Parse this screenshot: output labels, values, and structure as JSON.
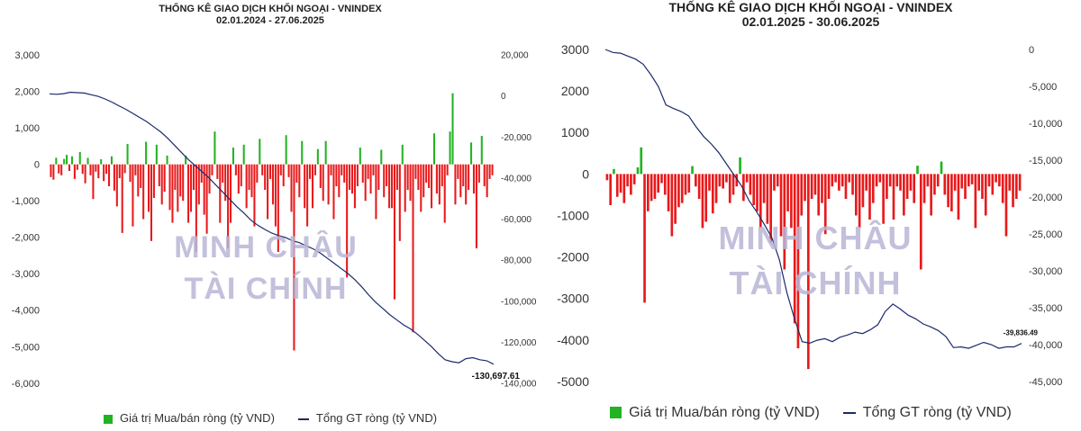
{
  "watermark": {
    "line1": "MINH CHÂU",
    "line2": "TÀI CHÍNH"
  },
  "chart_data": [
    {
      "type": "bar",
      "title": "THỐNG KÊ GIAO DỊCH KHỐI NGOẠI - VNINDEX",
      "subtitle": "02.01.2024 - 27.06.2025",
      "xlabel": "",
      "ylabel": "",
      "ylim": [
        -6000,
        3000
      ],
      "yticks": [
        "3,000",
        "2,000",
        "1,000",
        "0",
        "-1,000",
        "-2,000",
        "-3,000",
        "-4,000",
        "-5,000",
        "-6,000"
      ],
      "y2lim": [
        -140000,
        20000
      ],
      "y2ticks": [
        "20,000",
        "0",
        "-20,000",
        "-40,000",
        "-60,000",
        "-80,000",
        "-100,000",
        "-120,000",
        "-140,000"
      ],
      "colors": {
        "buy": "#22b322",
        "sell": "#e8191b",
        "cum_line": "#1c2a6b"
      },
      "legend": {
        "bar_label": "Giá trị Mua/bán ròng (tỷ VND)",
        "line_label": "Tổng GT ròng (tỷ VND)",
        "position": "bottom"
      },
      "annotation": "-130,697.61",
      "series": [
        {
          "name": "Giá trị Mua/bán ròng (tỷ VND)",
          "kind": "bar",
          "values": [
            -350,
            -420,
            180,
            -250,
            -300,
            150,
            260,
            -180,
            220,
            -400,
            -150,
            340,
            -260,
            -520,
            180,
            -300,
            -950,
            -200,
            -380,
            140,
            -460,
            -260,
            -600,
            220,
            -720,
            -1150,
            -380,
            -1880,
            -240,
            560,
            -480,
            -1700,
            -300,
            -880,
            -650,
            -1500,
            620,
            -1300,
            -2100,
            -920,
            540,
            -600,
            -1100,
            -750,
            240,
            -1250,
            -1600,
            -700,
            -1300,
            -880,
            -1000,
            240,
            -1600,
            -1300,
            -700,
            -2400,
            -1100,
            -500,
            -1380,
            -1900,
            -800,
            -300,
            900,
            -400,
            -1600,
            -500,
            -1000,
            -2300,
            -1600,
            460,
            -300,
            -800,
            -600,
            540,
            -1200,
            -700,
            -900,
            -1700,
            -500,
            700,
            -300,
            -700,
            -1500,
            -400,
            -1100,
            -1700,
            -2400,
            -300,
            -600,
            800,
            -350,
            -1300,
            -5100,
            -500,
            -900,
            640,
            -1200,
            -1700,
            -400,
            -1200,
            -300,
            420,
            -650,
            -1000,
            640,
            -1100,
            -300,
            -1500,
            -600,
            -900,
            -300,
            -500,
            -3100,
            -700,
            -800,
            -1200,
            -600,
            460,
            -500,
            -1000,
            -400,
            -800,
            -300,
            -1500,
            -700,
            400,
            -900,
            -600,
            -1200,
            -1200,
            -3700,
            -700,
            -2100,
            540,
            -1300,
            -700,
            -1000,
            -4600,
            -400,
            -700,
            -1300,
            -900,
            -500,
            -650,
            -1200,
            850,
            -800,
            -1100,
            -600,
            -1600,
            -300,
            900,
            1950,
            -1100,
            -400,
            -900,
            -600,
            -1100,
            -700,
            600,
            -800,
            -2300,
            -500,
            780,
            -600,
            -900,
            -400,
            -300
          ]
        },
        {
          "name": "Tổng GT ròng (tỷ VND)",
          "kind": "line",
          "axis": "right",
          "values": [
            1000,
            800,
            1100,
            1800,
            1600,
            1400,
            600,
            -200,
            -1500,
            -3000,
            -4800,
            -6500,
            -8500,
            -10500,
            -12500,
            -15000,
            -17500,
            -20500,
            -24000,
            -27500,
            -31000,
            -34000,
            -37000,
            -40000,
            -43500,
            -47000,
            -50500,
            -54000,
            -57000,
            -60500,
            -63000,
            -65000,
            -66800,
            -68000,
            -69000,
            -70500,
            -71500,
            -73000,
            -74500,
            -76500,
            -79000,
            -81500,
            -84000,
            -86500,
            -89500,
            -93000,
            -97000,
            -100500,
            -103500,
            -106500,
            -109000,
            -111500,
            -113500,
            -116000,
            -119000,
            -122000,
            -125500,
            -128500,
            -129500,
            -130000,
            -128000,
            -127500,
            -128500,
            -129000,
            -130697.61
          ]
        }
      ]
    },
    {
      "type": "bar",
      "title": "THỐNG KÊ GIAO DỊCH KHỐI NGOẠI - VNINDEX",
      "subtitle": "02.01.2025 - 30.06.2025",
      "xlabel": "",
      "ylabel": "",
      "ylim": [
        -5000,
        3000
      ],
      "yticks": [
        "3000",
        "2000",
        "1000",
        "0",
        "-1000",
        "-2000",
        "-3000",
        "-4000",
        "-5000"
      ],
      "y2lim": [
        -45000,
        0
      ],
      "y2ticks": [
        "0",
        "-5,000",
        "-10,000",
        "-15,000",
        "-20,000",
        "-25,000",
        "-30,000",
        "-35,000",
        "-40,000",
        "-45,000"
      ],
      "colors": {
        "buy": "#22b322",
        "sell": "#e8191b",
        "cum_line": "#1c2a6b"
      },
      "legend": {
        "bar_label": "Giá trị Mua/bán ròng (tỷ VND)",
        "line_label": "Tổng GT ròng (tỷ VND)",
        "position": "bottom"
      },
      "annotation": "-39,836.49",
      "series": [
        {
          "name": "Giá trị Mua/bán ròng (tỷ VND)",
          "kind": "bar",
          "values": [
            -150,
            -750,
            120,
            -550,
            -450,
            -700,
            -300,
            -500,
            -250,
            160,
            640,
            -3100,
            -900,
            -650,
            -600,
            -450,
            -220,
            -500,
            -900,
            -1500,
            -1200,
            -800,
            -700,
            -500,
            -450,
            190,
            -300,
            -600,
            -1300,
            -1150,
            -400,
            -950,
            -700,
            -300,
            -350,
            -200,
            -700,
            -500,
            -300,
            400,
            -650,
            -200,
            -500,
            -750,
            -900,
            -1300,
            -700,
            -1200,
            -1650,
            -400,
            -300,
            -1500,
            -2300,
            -900,
            -1300,
            -3600,
            -4200,
            -1000,
            -650,
            -4700,
            -600,
            -500,
            -1000,
            -700,
            -1450,
            -600,
            -300,
            -200,
            -400,
            -300,
            -600,
            -200,
            -500,
            -1000,
            -1300,
            -800,
            -400,
            -1100,
            -700,
            -300,
            -200,
            -1200,
            -600,
            -300,
            -1100,
            -300,
            -400,
            -1000,
            -600,
            -400,
            -700,
            200,
            -2300,
            -700,
            -300,
            -1000,
            -500,
            -300,
            300,
            -500,
            -800,
            -900,
            -400,
            -1100,
            -350,
            -600,
            -300,
            -250,
            -1300,
            -400,
            -600,
            -1000,
            -300,
            -500,
            -200,
            -300,
            -700,
            -1500,
            -400,
            -800,
            -600,
            -400
          ]
        },
        {
          "name": "Tổng GT ròng (tỷ VND)",
          "kind": "line",
          "axis": "right",
          "values": [
            0,
            -400,
            -500,
            -900,
            -1300,
            -2000,
            -3400,
            -5000,
            -7500,
            -8000,
            -8400,
            -9000,
            -10500,
            -11800,
            -12800,
            -14000,
            -15500,
            -17000,
            -18500,
            -20500,
            -22000,
            -23700,
            -25500,
            -28500,
            -33000,
            -36500,
            -39600,
            -39800,
            -39400,
            -39200,
            -39600,
            -39000,
            -38700,
            -38300,
            -38500,
            -38000,
            -37300,
            -35500,
            -34500,
            -35200,
            -36000,
            -36500,
            -37200,
            -37600,
            -38100,
            -38900,
            -40400,
            -40300,
            -40500,
            -40100,
            -39700,
            -40000,
            -40500,
            -40300,
            -40300,
            -39836.49
          ]
        }
      ]
    }
  ]
}
